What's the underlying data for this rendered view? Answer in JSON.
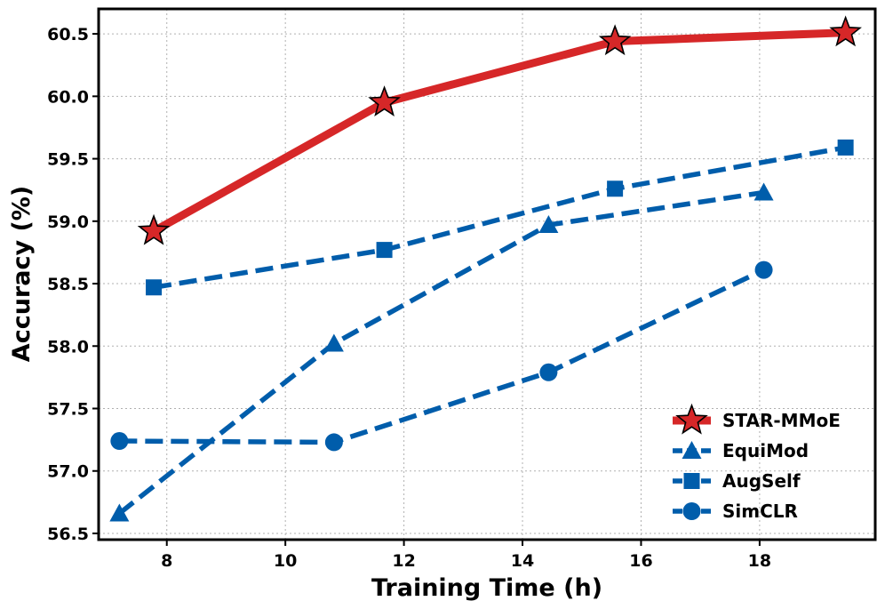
{
  "chart_data": {
    "type": "line",
    "title": "",
    "xlabel": "Training Time (h)",
    "ylabel": "Accuracy (%)",
    "xlim": [
      6.85,
      19.95
    ],
    "ylim": [
      56.45,
      60.7
    ],
    "xticks": [
      8,
      10,
      12,
      14,
      16,
      18
    ],
    "xtick_labels": [
      "8",
      "10",
      "12",
      "14",
      "16",
      "18"
    ],
    "yticks": [
      56.5,
      57.0,
      57.5,
      58.0,
      58.5,
      59.0,
      59.5,
      60.0,
      60.5
    ],
    "ytick_labels": [
      "56.5",
      "57.0",
      "57.5",
      "58.0",
      "58.5",
      "59.0",
      "59.5",
      "60.0",
      "60.5"
    ],
    "grid": true,
    "legend_position": "bottom-right",
    "series": [
      {
        "name": "STAR-MMoE",
        "color": "#d62728",
        "line_style": "solid",
        "marker": "star",
        "x": [
          7.78,
          11.67,
          15.56,
          19.45
        ],
        "y": [
          58.92,
          59.95,
          60.44,
          60.51
        ]
      },
      {
        "name": "EquiMod",
        "color": "#005dab",
        "line_style": "dashed",
        "marker": "triangle",
        "x": [
          7.2,
          10.82,
          14.44,
          18.07
        ],
        "y": [
          56.66,
          58.02,
          58.97,
          59.23
        ]
      },
      {
        "name": "AugSelf",
        "color": "#005dab",
        "line_style": "dashed",
        "marker": "square",
        "x": [
          7.78,
          11.67,
          15.56,
          19.45
        ],
        "y": [
          58.47,
          58.77,
          59.26,
          59.59
        ]
      },
      {
        "name": "SimCLR",
        "color": "#005dab",
        "line_style": "dashed",
        "marker": "circle",
        "x": [
          7.2,
          10.82,
          14.44,
          18.07
        ],
        "y": [
          57.24,
          57.23,
          57.79,
          58.61
        ]
      }
    ]
  }
}
